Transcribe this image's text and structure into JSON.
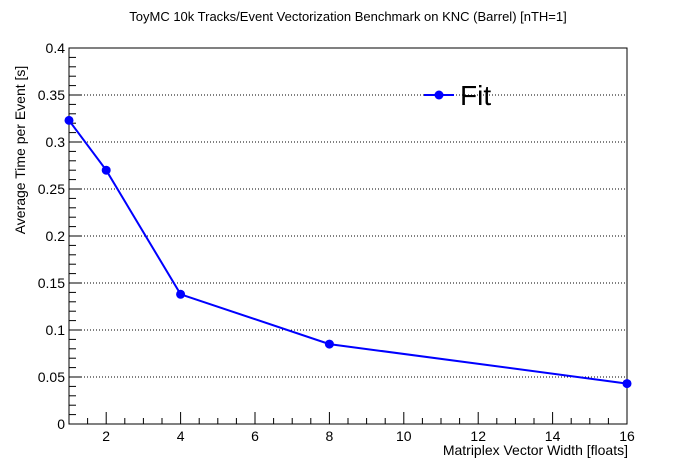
{
  "chart_data": {
    "type": "line",
    "title": "ToyMC 10k Tracks/Event Vectorization Benchmark on KNC (Barrel) [nTH=1]",
    "xlabel": "Matriplex Vector Width [floats]",
    "ylabel": "Average Time per Event [s]",
    "xlim": [
      1,
      16
    ],
    "ylim": [
      0,
      0.4
    ],
    "x_ticks": [
      2,
      4,
      6,
      8,
      10,
      12,
      14,
      16
    ],
    "y_ticks": [
      0,
      0.05,
      0.1,
      0.15,
      0.2,
      0.25,
      0.3,
      0.35,
      0.4
    ],
    "grid": "horizontal dotted",
    "legend_position": "top-right",
    "series": [
      {
        "name": "Fit",
        "color": "#0000ff",
        "x": [
          1,
          2,
          4,
          8,
          16
        ],
        "y": [
          0.323,
          0.27,
          0.138,
          0.085,
          0.043
        ],
        "err": [
          0.003,
          0.002,
          0.002,
          0.002,
          0.003
        ]
      }
    ]
  }
}
